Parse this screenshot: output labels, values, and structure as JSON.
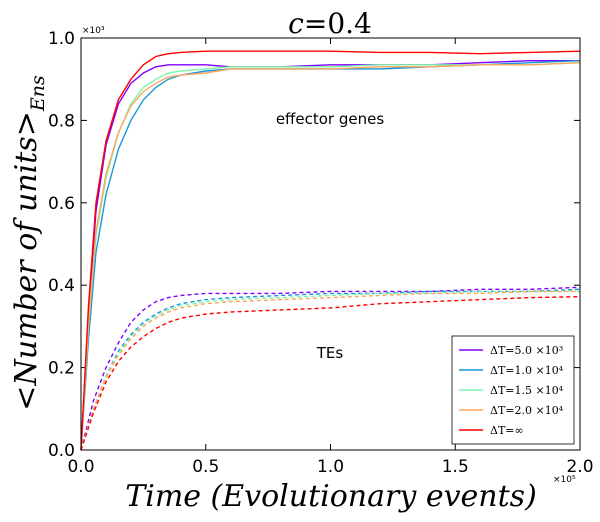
{
  "chart_data": {
    "type": "line",
    "title_var": "c",
    "title_eq": "=",
    "title_val": "0.4",
    "ylabel": "<Number of units>",
    "ylabel_sub": "Ens",
    "xlabel": "Time (Evolutionary events)",
    "x_multiplier": "×10⁵",
    "y_multiplier": "×10³",
    "xlim": [
      0,
      2.0
    ],
    "ylim": [
      0,
      1.0
    ],
    "xticks": [
      "0.0",
      "0.5",
      "1.0",
      "1.5",
      "2.0"
    ],
    "yticks": [
      "0.0",
      "0.2",
      "0.4",
      "0.6",
      "0.8",
      "1.0"
    ],
    "annotations": {
      "genes": "effector genes",
      "tes": "TEs"
    },
    "grid": false,
    "legend_position": "lower-right",
    "series": [
      {
        "name": "ΔT=5.0 ×10³",
        "color": "#7f00ff",
        "genes": [
          [
            0,
            0
          ],
          [
            0.03,
            0.33
          ],
          [
            0.06,
            0.58
          ],
          [
            0.1,
            0.74
          ],
          [
            0.15,
            0.84
          ],
          [
            0.2,
            0.89
          ],
          [
            0.25,
            0.915
          ],
          [
            0.3,
            0.93
          ],
          [
            0.35,
            0.935
          ],
          [
            0.4,
            0.935
          ],
          [
            0.5,
            0.935
          ],
          [
            0.6,
            0.93
          ],
          [
            0.8,
            0.93
          ],
          [
            1.0,
            0.935
          ],
          [
            1.2,
            0.935
          ],
          [
            1.4,
            0.935
          ],
          [
            1.6,
            0.94
          ],
          [
            1.8,
            0.945
          ],
          [
            2.0,
            0.945
          ]
        ],
        "tes": [
          [
            0,
            0
          ],
          [
            0.05,
            0.12
          ],
          [
            0.1,
            0.2
          ],
          [
            0.15,
            0.26
          ],
          [
            0.2,
            0.31
          ],
          [
            0.25,
            0.34
          ],
          [
            0.3,
            0.36
          ],
          [
            0.35,
            0.37
          ],
          [
            0.4,
            0.375
          ],
          [
            0.5,
            0.38
          ],
          [
            0.6,
            0.38
          ],
          [
            0.8,
            0.38
          ],
          [
            1.0,
            0.385
          ],
          [
            1.2,
            0.385
          ],
          [
            1.4,
            0.385
          ],
          [
            1.6,
            0.39
          ],
          [
            1.8,
            0.39
          ],
          [
            2.0,
            0.395
          ]
        ]
      },
      {
        "name": "ΔT=1.0 ×10⁴",
        "color": "#1996d8",
        "genes": [
          [
            0,
            0
          ],
          [
            0.03,
            0.27
          ],
          [
            0.06,
            0.48
          ],
          [
            0.1,
            0.62
          ],
          [
            0.15,
            0.73
          ],
          [
            0.2,
            0.8
          ],
          [
            0.25,
            0.85
          ],
          [
            0.3,
            0.88
          ],
          [
            0.35,
            0.9
          ],
          [
            0.4,
            0.91
          ],
          [
            0.5,
            0.92
          ],
          [
            0.6,
            0.925
          ],
          [
            0.8,
            0.925
          ],
          [
            1.0,
            0.925
          ],
          [
            1.2,
            0.925
          ],
          [
            1.4,
            0.93
          ],
          [
            1.6,
            0.935
          ],
          [
            1.8,
            0.94
          ],
          [
            2.0,
            0.945
          ]
        ],
        "tes": [
          [
            0,
            0
          ],
          [
            0.05,
            0.1
          ],
          [
            0.1,
            0.18
          ],
          [
            0.15,
            0.24
          ],
          [
            0.2,
            0.28
          ],
          [
            0.25,
            0.31
          ],
          [
            0.3,
            0.33
          ],
          [
            0.35,
            0.345
          ],
          [
            0.4,
            0.355
          ],
          [
            0.5,
            0.365
          ],
          [
            0.6,
            0.37
          ],
          [
            0.8,
            0.375
          ],
          [
            1.0,
            0.38
          ],
          [
            1.2,
            0.38
          ],
          [
            1.4,
            0.385
          ],
          [
            1.6,
            0.385
          ],
          [
            1.8,
            0.385
          ],
          [
            2.0,
            0.39
          ]
        ]
      },
      {
        "name": "ΔT=1.5 ×10⁴",
        "color": "#7ff5a8",
        "genes": [
          [
            0,
            0
          ],
          [
            0.03,
            0.3
          ],
          [
            0.06,
            0.52
          ],
          [
            0.1,
            0.66
          ],
          [
            0.15,
            0.77
          ],
          [
            0.2,
            0.84
          ],
          [
            0.25,
            0.88
          ],
          [
            0.3,
            0.9
          ],
          [
            0.35,
            0.915
          ],
          [
            0.4,
            0.92
          ],
          [
            0.5,
            0.925
          ],
          [
            0.6,
            0.93
          ],
          [
            0.8,
            0.93
          ],
          [
            1.0,
            0.93
          ],
          [
            1.2,
            0.935
          ],
          [
            1.4,
            0.935
          ],
          [
            1.6,
            0.935
          ],
          [
            1.8,
            0.935
          ],
          [
            2.0,
            0.94
          ]
        ],
        "tes": [
          [
            0,
            0
          ],
          [
            0.05,
            0.1
          ],
          [
            0.1,
            0.18
          ],
          [
            0.15,
            0.235
          ],
          [
            0.2,
            0.275
          ],
          [
            0.25,
            0.305
          ],
          [
            0.3,
            0.325
          ],
          [
            0.35,
            0.34
          ],
          [
            0.4,
            0.35
          ],
          [
            0.5,
            0.36
          ],
          [
            0.6,
            0.365
          ],
          [
            0.8,
            0.37
          ],
          [
            1.0,
            0.375
          ],
          [
            1.2,
            0.38
          ],
          [
            1.4,
            0.38
          ],
          [
            1.6,
            0.385
          ],
          [
            1.8,
            0.385
          ],
          [
            2.0,
            0.385
          ]
        ]
      },
      {
        "name": "ΔT=2.0 ×10⁴",
        "color": "#ffa65c",
        "genes": [
          [
            0,
            0
          ],
          [
            0.03,
            0.31
          ],
          [
            0.06,
            0.53
          ],
          [
            0.1,
            0.67
          ],
          [
            0.15,
            0.77
          ],
          [
            0.2,
            0.835
          ],
          [
            0.25,
            0.87
          ],
          [
            0.3,
            0.89
          ],
          [
            0.35,
            0.905
          ],
          [
            0.4,
            0.91
          ],
          [
            0.5,
            0.915
          ],
          [
            0.6,
            0.925
          ],
          [
            0.8,
            0.925
          ],
          [
            1.0,
            0.925
          ],
          [
            1.2,
            0.93
          ],
          [
            1.4,
            0.93
          ],
          [
            1.6,
            0.935
          ],
          [
            1.8,
            0.935
          ],
          [
            2.0,
            0.94
          ]
        ],
        "tes": [
          [
            0,
            0
          ],
          [
            0.05,
            0.1
          ],
          [
            0.1,
            0.175
          ],
          [
            0.15,
            0.23
          ],
          [
            0.2,
            0.27
          ],
          [
            0.25,
            0.3
          ],
          [
            0.3,
            0.32
          ],
          [
            0.35,
            0.335
          ],
          [
            0.4,
            0.345
          ],
          [
            0.5,
            0.355
          ],
          [
            0.6,
            0.36
          ],
          [
            0.8,
            0.365
          ],
          [
            1.0,
            0.37
          ],
          [
            1.2,
            0.375
          ],
          [
            1.4,
            0.38
          ],
          [
            1.6,
            0.38
          ],
          [
            1.8,
            0.385
          ],
          [
            2.0,
            0.385
          ]
        ]
      },
      {
        "name": "ΔT=∞",
        "color": "#ff0000",
        "genes": [
          [
            0,
            0
          ],
          [
            0.03,
            0.35
          ],
          [
            0.06,
            0.6
          ],
          [
            0.1,
            0.75
          ],
          [
            0.15,
            0.85
          ],
          [
            0.2,
            0.9
          ],
          [
            0.25,
            0.935
          ],
          [
            0.3,
            0.955
          ],
          [
            0.35,
            0.962
          ],
          [
            0.4,
            0.965
          ],
          [
            0.5,
            0.968
          ],
          [
            0.6,
            0.968
          ],
          [
            0.8,
            0.968
          ],
          [
            1.0,
            0.968
          ],
          [
            1.2,
            0.965
          ],
          [
            1.4,
            0.965
          ],
          [
            1.6,
            0.962
          ],
          [
            1.8,
            0.965
          ],
          [
            2.0,
            0.968
          ]
        ],
        "tes": [
          [
            0,
            0
          ],
          [
            0.05,
            0.09
          ],
          [
            0.1,
            0.165
          ],
          [
            0.15,
            0.215
          ],
          [
            0.2,
            0.25
          ],
          [
            0.25,
            0.275
          ],
          [
            0.3,
            0.295
          ],
          [
            0.35,
            0.31
          ],
          [
            0.4,
            0.32
          ],
          [
            0.5,
            0.33
          ],
          [
            0.6,
            0.335
          ],
          [
            0.8,
            0.34
          ],
          [
            1.0,
            0.345
          ],
          [
            1.2,
            0.355
          ],
          [
            1.4,
            0.36
          ],
          [
            1.6,
            0.365
          ],
          [
            1.8,
            0.37
          ],
          [
            2.0,
            0.372
          ]
        ]
      }
    ]
  }
}
